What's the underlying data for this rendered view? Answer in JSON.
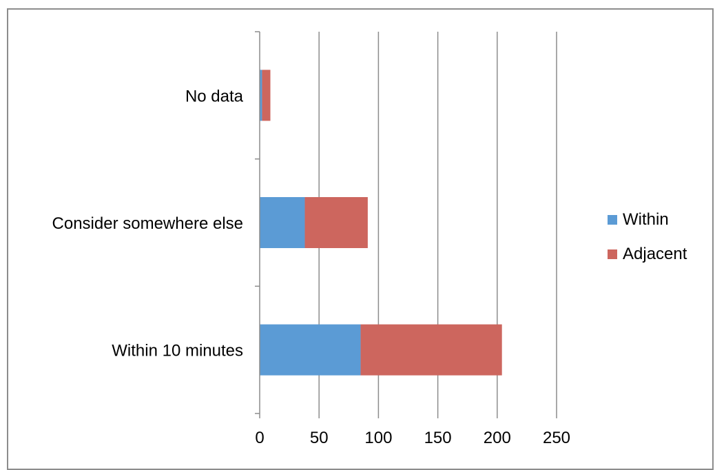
{
  "chart_data": {
    "type": "bar",
    "orientation": "horizontal",
    "stacked": true,
    "categories": [
      "No data",
      "Consider somewhere else",
      "Within 10 minutes"
    ],
    "series": [
      {
        "name": "Within",
        "values": [
          2,
          38,
          85
        ],
        "color": "#5b9bd5"
      },
      {
        "name": "Adjacent",
        "values": [
          7,
          53,
          119
        ],
        "color": "#cd665e"
      }
    ],
    "xlim": [
      0,
      250
    ],
    "xticks": [
      "0",
      "50",
      "100",
      "150",
      "200",
      "250"
    ],
    "grid": true,
    "legend_position": "right",
    "title": "",
    "xlabel": "",
    "ylabel": ""
  }
}
